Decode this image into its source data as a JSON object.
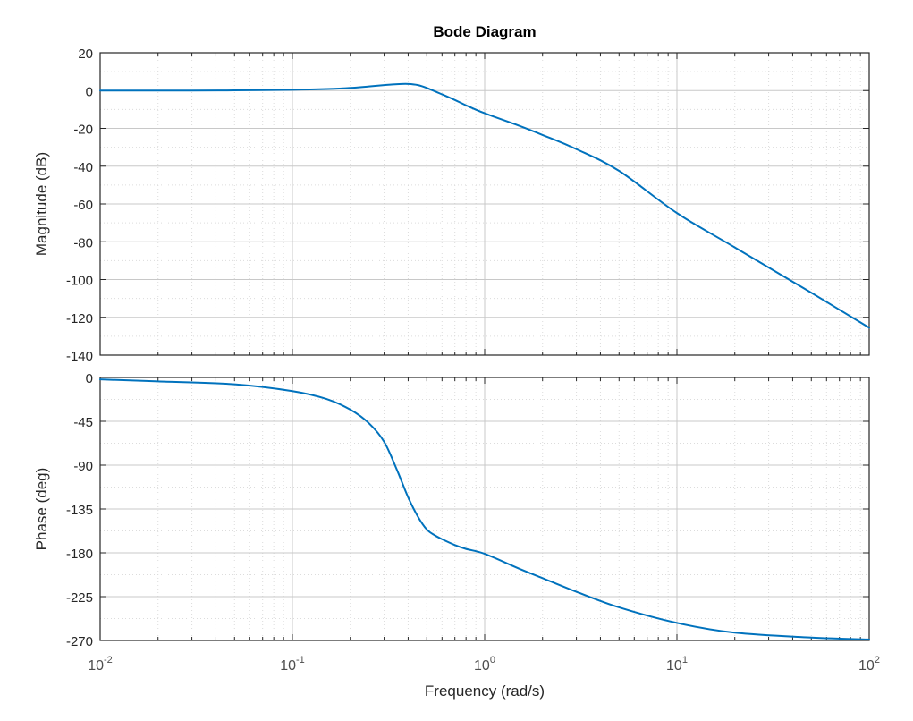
{
  "figure": {
    "title": "Bode Diagram",
    "xlabel": "Frequency  (rad/s)"
  },
  "colors": {
    "line": "#0072BD",
    "axis": "#262626",
    "grid_major": "#c8c8c8",
    "grid_minor": "#dcdcdc"
  },
  "chart_data": [
    {
      "type": "line",
      "name": "magnitude",
      "title": "Bode Diagram",
      "xlabel": "Frequency  (rad/s)",
      "ylabel": "Magnitude (dB)",
      "xscale": "log",
      "xlim": [
        0.01,
        100
      ],
      "ylim": [
        -140,
        20
      ],
      "yticks": [
        20,
        0,
        -20,
        -40,
        -60,
        -80,
        -100,
        -120,
        -140
      ],
      "xtick_bases": [
        "10",
        "10",
        "10",
        "10",
        "10"
      ],
      "xtick_exps": [
        "-2",
        "-1",
        "0",
        "1",
        "2"
      ],
      "x": [
        0.01,
        0.03,
        0.05,
        0.1,
        0.15,
        0.2,
        0.25,
        0.3,
        0.35,
        0.4,
        0.45,
        0.5,
        0.6,
        0.7,
        0.8,
        1,
        1.5,
        2,
        3,
        5,
        10,
        20,
        50,
        100
      ],
      "series": [
        {
          "name": "Magnitude",
          "values": [
            0,
            0,
            0.1,
            0.4,
            0.8,
            1.4,
            2.2,
            2.9,
            3.4,
            3.5,
            2.9,
            1.4,
            -2.0,
            -5.0,
            -7.8,
            -12.0,
            -18.5,
            -23.5,
            -31.0,
            -42.5,
            -64.8,
            -83.0,
            -107.0,
            -125.5
          ]
        }
      ]
    },
    {
      "type": "line",
      "name": "phase",
      "xlabel": "Frequency  (rad/s)",
      "ylabel": "Phase (deg)",
      "xscale": "log",
      "xlim": [
        0.01,
        100
      ],
      "ylim": [
        -270,
        0
      ],
      "yticks": [
        0,
        -45,
        -90,
        -135,
        -180,
        -225,
        -270
      ],
      "xtick_bases": [
        "10",
        "10",
        "10",
        "10",
        "10"
      ],
      "xtick_exps": [
        "-2",
        "-1",
        "0",
        "1",
        "2"
      ],
      "x": [
        0.01,
        0.02,
        0.05,
        0.1,
        0.15,
        0.2,
        0.25,
        0.3,
        0.35,
        0.4,
        0.45,
        0.5,
        0.55,
        0.6,
        0.7,
        0.8,
        1,
        1.5,
        2,
        3,
        5,
        10,
        20,
        50,
        100
      ],
      "series": [
        {
          "name": "Phase",
          "values": [
            -2,
            -4,
            -7,
            -14,
            -22,
            -33,
            -47,
            -66,
            -95,
            -123,
            -143,
            -156,
            -162,
            -166,
            -172,
            -176,
            -181,
            -196,
            -206,
            -220,
            -236,
            -252,
            -262,
            -267,
            -269
          ]
        }
      ]
    }
  ]
}
